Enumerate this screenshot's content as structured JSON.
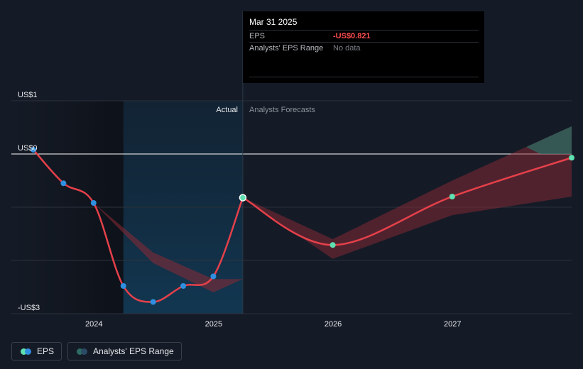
{
  "tooltip": {
    "date": "Mar 31 2025",
    "rows": [
      {
        "label": "EPS",
        "value": "-US$0.821"
      },
      {
        "label": "Analysts' EPS Range",
        "value": "No data"
      }
    ]
  },
  "regions": {
    "actual_label": "Actual",
    "forecast_label": "Analysts Forecasts"
  },
  "legend": {
    "eps_label": "EPS",
    "range_label": "Analysts' EPS Range"
  },
  "colors": {
    "eps_line": "#e5404a",
    "eps_dot_actual": "#2f8fe0",
    "eps_dot_forecast": "#5fe0b0",
    "range_bad": "#8b2a35",
    "range_good": "#2e6b63",
    "highlight": "#12324a",
    "background": "#151b26"
  },
  "chart_data": {
    "type": "line",
    "y_unit": "US$",
    "ylim": [
      -3,
      1
    ],
    "y_ticks": [
      {
        "value": 1,
        "label": "US$1"
      },
      {
        "value": 0,
        "label": "US$0"
      },
      {
        "value": -3,
        "label": "-US$3"
      }
    ],
    "x_ticks": [
      {
        "value": "2024-01-01",
        "label": "2024"
      },
      {
        "value": "2025-01-01",
        "label": "2025"
      },
      {
        "value": "2026-01-01",
        "label": "2026"
      },
      {
        "value": "2027-01-01",
        "label": "2027"
      }
    ],
    "x_start": "2023-06-30",
    "x_end": "2027-12-31",
    "series": [
      {
        "name": "EPS",
        "kind": "actual",
        "points": [
          {
            "x": "2023-06-30",
            "y": 0.08
          },
          {
            "x": "2023-09-30",
            "y": -0.55
          },
          {
            "x": "2023-12-31",
            "y": -0.92
          },
          {
            "x": "2024-03-31",
            "y": -2.48
          },
          {
            "x": "2024-06-30",
            "y": -2.78
          },
          {
            "x": "2024-09-30",
            "y": -2.48
          },
          {
            "x": "2024-12-31",
            "y": -2.3
          },
          {
            "x": "2025-03-31",
            "y": -0.821
          }
        ]
      },
      {
        "name": "EPS",
        "kind": "forecast",
        "points": [
          {
            "x": "2025-03-31",
            "y": -0.821
          },
          {
            "x": "2025-12-31",
            "y": -1.71
          },
          {
            "x": "2026-12-31",
            "y": -0.8
          },
          {
            "x": "2027-12-31",
            "y": -0.07
          }
        ]
      }
    ],
    "range": [
      {
        "x": "2023-12-31",
        "low": -0.92,
        "high": -0.92
      },
      {
        "x": "2024-06-30",
        "low": -2.05,
        "high": -1.85
      },
      {
        "x": "2024-12-31",
        "low": -2.6,
        "high": -2.35
      },
      {
        "x": "2025-03-31",
        "low": -2.35,
        "high": -2.35
      },
      {
        "x": "2025-03-31",
        "low": -0.821,
        "high": -0.821
      },
      {
        "x": "2025-12-31",
        "low": -1.97,
        "high": -1.6
      },
      {
        "x": "2026-12-31",
        "low": -1.15,
        "high": -0.5
      },
      {
        "x": "2027-12-31",
        "low": -0.8,
        "high": 0.52
      }
    ],
    "actual_region": {
      "start": "2024-03-31",
      "end": "2025-03-31"
    },
    "highlight_date": "2025-03-31"
  }
}
